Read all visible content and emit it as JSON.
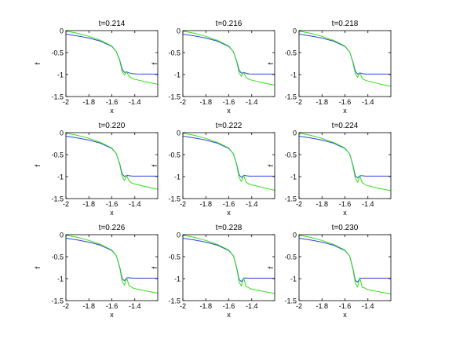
{
  "chart_data": [
    {
      "type": "line",
      "title": "t=0.214",
      "xlabel": "x",
      "ylabel": "f",
      "xlim": [
        -2,
        -1.2
      ],
      "ylim": [
        -1.5,
        0
      ],
      "xticks": [
        "-2",
        "-1.8",
        "-1.6",
        "-1.4"
      ],
      "yticks": [
        "0",
        "-0.5",
        "-1",
        "-1.5"
      ],
      "grid": false,
      "series": [
        {
          "color": "#2b45d9",
          "x": [
            -2,
            -1.9,
            -1.8,
            -1.7,
            -1.6,
            -1.56,
            -1.53,
            -1.51,
            -1.49,
            -1.47,
            -1.45,
            -1.42,
            -1.38,
            -1.3,
            -1.2
          ],
          "y": [
            -0.08,
            -0.12,
            -0.17,
            -0.24,
            -0.36,
            -0.48,
            -0.68,
            -0.88,
            -0.95,
            -0.94,
            -0.96,
            -0.98,
            -0.985,
            -0.99,
            -0.99
          ]
        },
        {
          "color": "#33dd1a",
          "x": [
            -2,
            -1.9,
            -1.8,
            -1.7,
            -1.6,
            -1.56,
            -1.53,
            -1.51,
            -1.49,
            -1.47,
            -1.45,
            -1.43,
            -1.41,
            -1.38,
            -1.3,
            -1.2
          ],
          "y": [
            -0.01,
            -0.06,
            -0.13,
            -0.22,
            -0.35,
            -0.48,
            -0.7,
            -0.94,
            -1.01,
            -0.94,
            -1.04,
            -1.08,
            -1.1,
            -1.12,
            -1.17,
            -1.22
          ]
        }
      ]
    },
    {
      "type": "line",
      "title": "t=0.216",
      "xlabel": "x",
      "ylabel": "f",
      "xlim": [
        -2,
        -1.2
      ],
      "ylim": [
        -1.5,
        0
      ],
      "xticks": [
        "-2",
        "-1.8",
        "-1.6",
        "-1.4"
      ],
      "yticks": [
        "0",
        "-0.5",
        "-1",
        "-1.5"
      ],
      "grid": false,
      "series": [
        {
          "color": "#2b45d9",
          "x": [
            -2,
            -1.9,
            -1.8,
            -1.7,
            -1.6,
            -1.56,
            -1.53,
            -1.51,
            -1.49,
            -1.47,
            -1.45,
            -1.42,
            -1.38,
            -1.3,
            -1.2
          ],
          "y": [
            -0.08,
            -0.12,
            -0.17,
            -0.24,
            -0.36,
            -0.48,
            -0.7,
            -0.9,
            -0.97,
            -0.95,
            -0.97,
            -0.985,
            -0.99,
            -0.99,
            -0.99
          ]
        },
        {
          "color": "#33dd1a",
          "x": [
            -2,
            -1.9,
            -1.8,
            -1.7,
            -1.6,
            -1.56,
            -1.53,
            -1.51,
            -1.49,
            -1.47,
            -1.45,
            -1.43,
            -1.41,
            -1.38,
            -1.3,
            -1.2
          ],
          "y": [
            -0.01,
            -0.06,
            -0.13,
            -0.22,
            -0.35,
            -0.48,
            -0.72,
            -0.96,
            -1.04,
            -0.95,
            -1.06,
            -1.1,
            -1.12,
            -1.14,
            -1.19,
            -1.24
          ]
        }
      ]
    },
    {
      "type": "line",
      "title": "t=0.218",
      "xlabel": "x",
      "ylabel": "f",
      "xlim": [
        -2,
        -1.2
      ],
      "ylim": [
        -1.5,
        0
      ],
      "xticks": [
        "-2",
        "-1.8",
        "-1.6",
        "-1.4"
      ],
      "yticks": [
        "0",
        "-0.5",
        "-1",
        "-1.5"
      ],
      "grid": false,
      "series": [
        {
          "color": "#2b45d9",
          "x": [
            -2,
            -1.9,
            -1.8,
            -1.7,
            -1.6,
            -1.56,
            -1.53,
            -1.51,
            -1.49,
            -1.47,
            -1.45,
            -1.42,
            -1.38,
            -1.3,
            -1.2
          ],
          "y": [
            -0.08,
            -0.12,
            -0.17,
            -0.24,
            -0.36,
            -0.48,
            -0.71,
            -0.92,
            -0.99,
            -0.96,
            -0.975,
            -0.99,
            -0.99,
            -0.99,
            -0.99
          ]
        },
        {
          "color": "#33dd1a",
          "x": [
            -2,
            -1.9,
            -1.8,
            -1.7,
            -1.6,
            -1.56,
            -1.53,
            -1.51,
            -1.49,
            -1.47,
            -1.45,
            -1.43,
            -1.41,
            -1.38,
            -1.3,
            -1.2
          ],
          "y": [
            -0.01,
            -0.06,
            -0.13,
            -0.22,
            -0.35,
            -0.48,
            -0.73,
            -0.98,
            -1.06,
            -0.96,
            -1.08,
            -1.12,
            -1.14,
            -1.16,
            -1.21,
            -1.27
          ]
        }
      ]
    },
    {
      "type": "line",
      "title": "t=0.220",
      "xlabel": "x",
      "ylabel": "f",
      "xlim": [
        -2,
        -1.2
      ],
      "ylim": [
        -1.5,
        0
      ],
      "xticks": [
        "-2",
        "-1.8",
        "-1.6",
        "-1.4"
      ],
      "yticks": [
        "0",
        "-0.5",
        "-1",
        "-1.5"
      ],
      "grid": false,
      "series": [
        {
          "color": "#2b45d9",
          "x": [
            -2,
            -1.9,
            -1.8,
            -1.7,
            -1.6,
            -1.56,
            -1.53,
            -1.51,
            -1.49,
            -1.47,
            -1.45,
            -1.42,
            -1.38,
            -1.3,
            -1.2
          ],
          "y": [
            -0.08,
            -0.12,
            -0.17,
            -0.24,
            -0.36,
            -0.48,
            -0.72,
            -0.94,
            -1.0,
            -0.97,
            -0.98,
            -0.99,
            -0.99,
            -0.99,
            -0.99
          ]
        },
        {
          "color": "#33dd1a",
          "x": [
            -2,
            -1.9,
            -1.8,
            -1.7,
            -1.6,
            -1.56,
            -1.53,
            -1.51,
            -1.49,
            -1.47,
            -1.45,
            -1.43,
            -1.41,
            -1.38,
            -1.3,
            -1.2
          ],
          "y": [
            -0.01,
            -0.06,
            -0.13,
            -0.22,
            -0.35,
            -0.48,
            -0.74,
            -1.0,
            -1.09,
            -0.97,
            -1.1,
            -1.14,
            -1.16,
            -1.18,
            -1.23,
            -1.29
          ]
        }
      ]
    },
    {
      "type": "line",
      "title": "t=0.222",
      "xlabel": "x",
      "ylabel": "f",
      "xlim": [
        -2,
        -1.2
      ],
      "ylim": [
        -1.5,
        0
      ],
      "xticks": [
        "-2",
        "-1.8",
        "-1.6",
        "-1.4"
      ],
      "yticks": [
        "0",
        "-0.5",
        "-1",
        "-1.5"
      ],
      "grid": false,
      "series": [
        {
          "color": "#2b45d9",
          "x": [
            -2,
            -1.9,
            -1.8,
            -1.7,
            -1.6,
            -1.56,
            -1.53,
            -1.51,
            -1.49,
            -1.47,
            -1.45,
            -1.42,
            -1.38,
            -1.3,
            -1.2
          ],
          "y": [
            -0.08,
            -0.12,
            -0.17,
            -0.24,
            -0.36,
            -0.48,
            -0.73,
            -0.96,
            -1.02,
            -0.97,
            -0.98,
            -0.99,
            -0.99,
            -0.99,
            -0.99
          ]
        },
        {
          "color": "#33dd1a",
          "x": [
            -2,
            -1.9,
            -1.8,
            -1.7,
            -1.6,
            -1.56,
            -1.53,
            -1.51,
            -1.49,
            -1.47,
            -1.45,
            -1.43,
            -1.41,
            -1.38,
            -1.3,
            -1.2
          ],
          "y": [
            -0.01,
            -0.06,
            -0.13,
            -0.22,
            -0.35,
            -0.48,
            -0.75,
            -1.02,
            -1.11,
            -0.97,
            -1.12,
            -1.16,
            -1.18,
            -1.2,
            -1.25,
            -1.31
          ]
        }
      ]
    },
    {
      "type": "line",
      "title": "t=0.224",
      "xlabel": "x",
      "ylabel": "f",
      "xlim": [
        -2,
        -1.2
      ],
      "ylim": [
        -1.5,
        0
      ],
      "xticks": [
        "-2",
        "-1.8",
        "-1.6",
        "-1.4"
      ],
      "yticks": [
        "0",
        "-0.5",
        "-1",
        "-1.5"
      ],
      "grid": false,
      "series": [
        {
          "color": "#2b45d9",
          "x": [
            -2,
            -1.9,
            -1.8,
            -1.7,
            -1.6,
            -1.56,
            -1.53,
            -1.51,
            -1.49,
            -1.47,
            -1.45,
            -1.42,
            -1.38,
            -1.3,
            -1.2
          ],
          "y": [
            -0.08,
            -0.12,
            -0.17,
            -0.24,
            -0.36,
            -0.48,
            -0.74,
            -0.98,
            -1.03,
            -0.98,
            -0.98,
            -0.99,
            -0.99,
            -0.99,
            -0.99
          ]
        },
        {
          "color": "#33dd1a",
          "x": [
            -2,
            -1.9,
            -1.8,
            -1.7,
            -1.6,
            -1.56,
            -1.53,
            -1.51,
            -1.49,
            -1.47,
            -1.45,
            -1.43,
            -1.41,
            -1.38,
            -1.3,
            -1.2
          ],
          "y": [
            -0.01,
            -0.06,
            -0.13,
            -0.22,
            -0.35,
            -0.48,
            -0.76,
            -1.04,
            -1.13,
            -0.98,
            -1.14,
            -1.17,
            -1.2,
            -1.22,
            -1.27,
            -1.32
          ]
        }
      ]
    },
    {
      "type": "line",
      "title": "t=0.226",
      "xlabel": "x",
      "ylabel": "f",
      "xlim": [
        -2,
        -1.2
      ],
      "ylim": [
        -1.5,
        0
      ],
      "xticks": [
        "-2",
        "-1.8",
        "-1.6",
        "-1.4"
      ],
      "yticks": [
        "0",
        "-0.5",
        "-1",
        "-1.5"
      ],
      "grid": false,
      "series": [
        {
          "color": "#2b45d9",
          "x": [
            -2,
            -1.9,
            -1.8,
            -1.7,
            -1.6,
            -1.56,
            -1.53,
            -1.51,
            -1.49,
            -1.47,
            -1.45,
            -1.42,
            -1.38,
            -1.3,
            -1.2
          ],
          "y": [
            -0.08,
            -0.12,
            -0.17,
            -0.24,
            -0.36,
            -0.48,
            -0.75,
            -1.0,
            -1.05,
            -0.98,
            -0.98,
            -0.99,
            -0.99,
            -0.99,
            -0.99
          ]
        },
        {
          "color": "#33dd1a",
          "x": [
            -2,
            -1.9,
            -1.8,
            -1.7,
            -1.6,
            -1.56,
            -1.53,
            -1.51,
            -1.49,
            -1.47,
            -1.45,
            -1.43,
            -1.41,
            -1.38,
            -1.3,
            -1.2
          ],
          "y": [
            -0.01,
            -0.06,
            -0.13,
            -0.22,
            -0.35,
            -0.48,
            -0.77,
            -1.06,
            -1.15,
            -0.98,
            -1.16,
            -1.19,
            -1.22,
            -1.24,
            -1.28,
            -1.33
          ]
        }
      ]
    },
    {
      "type": "line",
      "title": "t=0.228",
      "xlabel": "x",
      "ylabel": "f",
      "xlim": [
        -2,
        -1.2
      ],
      "ylim": [
        -1.5,
        0
      ],
      "xticks": [
        "-2",
        "-1.8",
        "-1.6",
        "-1.4"
      ],
      "yticks": [
        "0",
        "-0.5",
        "-1",
        "-1.5"
      ],
      "grid": false,
      "series": [
        {
          "color": "#2b45d9",
          "x": [
            -2,
            -1.9,
            -1.8,
            -1.7,
            -1.6,
            -1.56,
            -1.53,
            -1.51,
            -1.49,
            -1.47,
            -1.45,
            -1.42,
            -1.38,
            -1.3,
            -1.2
          ],
          "y": [
            -0.08,
            -0.12,
            -0.17,
            -0.24,
            -0.36,
            -0.48,
            -0.76,
            -1.02,
            -1.07,
            -0.99,
            -0.985,
            -0.99,
            -0.99,
            -0.99,
            -0.99
          ]
        },
        {
          "color": "#33dd1a",
          "x": [
            -2,
            -1.9,
            -1.8,
            -1.7,
            -1.6,
            -1.56,
            -1.53,
            -1.51,
            -1.49,
            -1.47,
            -1.45,
            -1.43,
            -1.41,
            -1.38,
            -1.3,
            -1.2
          ],
          "y": [
            -0.01,
            -0.06,
            -0.13,
            -0.22,
            -0.35,
            -0.48,
            -0.78,
            -1.08,
            -1.17,
            -0.98,
            -1.18,
            -1.2,
            -1.23,
            -1.25,
            -1.29,
            -1.34
          ]
        }
      ]
    },
    {
      "type": "line",
      "title": "t=0.230",
      "xlabel": "x",
      "ylabel": "f",
      "xlim": [
        -2,
        -1.2
      ],
      "ylim": [
        -1.5,
        0
      ],
      "xticks": [
        "-2",
        "-1.8",
        "-1.6",
        "-1.4"
      ],
      "yticks": [
        "0",
        "-0.5",
        "-1",
        "-1.5"
      ],
      "grid": false,
      "series": [
        {
          "color": "#2b45d9",
          "x": [
            -2,
            -1.9,
            -1.8,
            -1.7,
            -1.6,
            -1.56,
            -1.53,
            -1.51,
            -1.49,
            -1.47,
            -1.45,
            -1.42,
            -1.38,
            -1.3,
            -1.2
          ],
          "y": [
            -0.08,
            -0.12,
            -0.17,
            -0.24,
            -0.36,
            -0.48,
            -0.77,
            -1.04,
            -1.08,
            -0.99,
            -0.99,
            -0.99,
            -0.99,
            -0.99,
            -0.99
          ]
        },
        {
          "color": "#33dd1a",
          "x": [
            -2,
            -1.9,
            -1.8,
            -1.7,
            -1.6,
            -1.56,
            -1.53,
            -1.51,
            -1.49,
            -1.47,
            -1.45,
            -1.43,
            -1.41,
            -1.38,
            -1.3,
            -1.2
          ],
          "y": [
            -0.01,
            -0.06,
            -0.13,
            -0.22,
            -0.35,
            -0.48,
            -0.79,
            -1.1,
            -1.19,
            -0.98,
            -1.2,
            -1.21,
            -1.24,
            -1.26,
            -1.3,
            -1.35
          ]
        }
      ]
    }
  ]
}
